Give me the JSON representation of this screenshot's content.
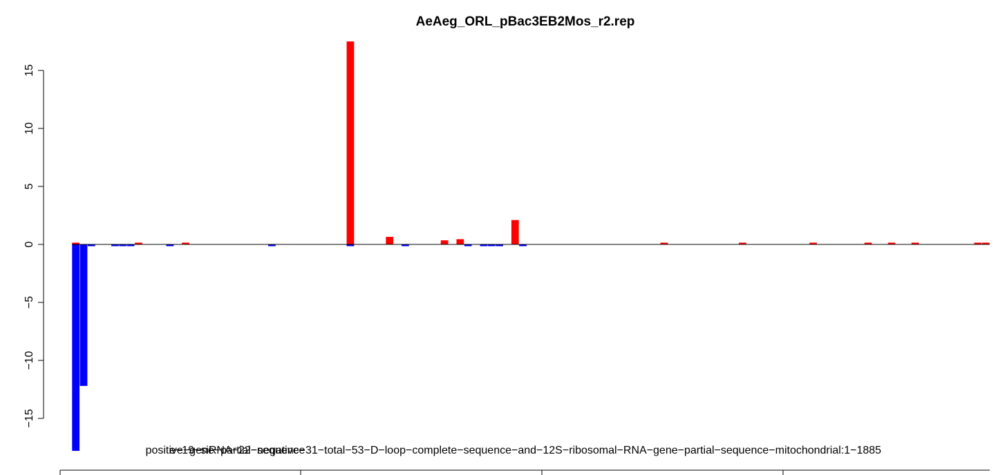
{
  "chart_data": {
    "type": "bar",
    "title": "AeAeg_ORL_pBac3EB2Mos_r2.rep",
    "xlabel": "",
    "ylabel": "",
    "ylim": [
      -17.5,
      17.5
    ],
    "yticks": [
      -15,
      -10,
      -5,
      0,
      5,
      10,
      15
    ],
    "ytick_labels": [
      "−15",
      "−10",
      "−5",
      "0",
      "5",
      "10",
      "15"
    ],
    "x_text_labels": [
      "e−19−siRNA−22−negative−31−total−53−D−loop−complete−sequence−and−12S−ribosomal−RNA−gene−partial−sequence−mitochondrial:1−1885",
      "positive−gene−partial−sequence"
    ],
    "grid": false,
    "legend": "none",
    "colors": {
      "positive": "#ff0000",
      "negative": "#0000ff",
      "baseline": "#000000"
    },
    "series": [
      {
        "color": "#ff0000",
        "bins": [
          1,
          9,
          15,
          36,
          41,
          48,
          50,
          57,
          76,
          86,
          95,
          102,
          105,
          108,
          116,
          117
        ],
        "values": [
          0.15,
          0.15,
          0.15,
          17.5,
          0.65,
          0.35,
          0.45,
          2.1,
          0.15,
          0.15,
          0.15,
          0.15,
          0.15,
          0.15,
          0.15,
          0.15
        ]
      },
      {
        "color": "#0000ff",
        "bins": [
          1,
          2,
          3,
          6,
          7,
          8,
          13,
          26,
          36,
          43,
          51,
          53,
          54,
          55,
          58
        ],
        "values": [
          -17.8,
          -12.2,
          -0.15,
          -0.15,
          -0.15,
          -0.15,
          -0.15,
          -0.15,
          -0.15,
          -0.15,
          -0.15,
          -0.15,
          -0.15,
          -0.15,
          -0.15
        ]
      }
    ]
  }
}
